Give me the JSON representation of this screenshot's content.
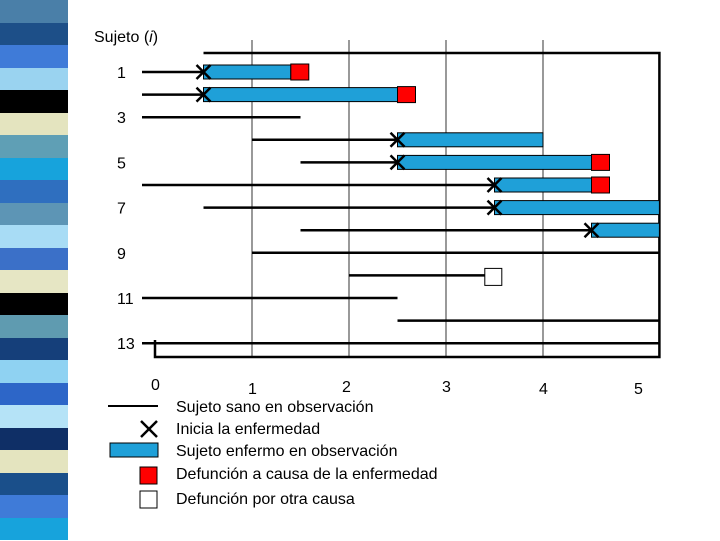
{
  "y_axis_title": "Sujeto (i)",
  "y_axis_title_prefix": "Sujeto (",
  "y_axis_title_var": "i",
  "y_axis_title_suffix": ")",
  "y_tick_labels": [
    "1",
    "3",
    "5",
    "7",
    "9",
    "11",
    "13"
  ],
  "x_tick_labels": [
    "0",
    "1",
    "2",
    "3",
    "4",
    "5"
  ],
  "legend": {
    "healthy": "Sujeto sano en observación",
    "onset": "Inicia la enfermedad",
    "sick": "Sujeto enfermo en observación",
    "death_disease": "Defunción a causa de la enfermedad",
    "death_other": "Defunción por otra causa"
  },
  "colors": {
    "sick_bar": "#1fa0d8",
    "death_disease": "#ff0000",
    "death_other": "#ffffff",
    "line": "#000000"
  },
  "stripe_colors": [
    "#4a7fa8",
    "#1d4f88",
    "#3f7bd8",
    "#9ad3f0",
    "#000000",
    "#e4e4bf",
    "#5f9fb5",
    "#17a3dc",
    "#2f6fbf",
    "#5d95b5",
    "#a8dcf5",
    "#3b70c8",
    "#e6e6c4",
    "#000000",
    "#5f9bb0",
    "#153f7a",
    "#8fd2f2",
    "#2d66c8",
    "#b5e3f7",
    "#0f2f66",
    "#e4e4bf",
    "#1a4f8a",
    "#3f7bd8",
    "#17a3dc"
  ],
  "chart_data": {
    "type": "timeline",
    "x_range": [
      0,
      5
    ],
    "subjects": [
      {
        "id": 1,
        "healthy": [
          0,
          0.5
        ],
        "onset": 0.5,
        "sick": [
          0.5,
          1.4
        ],
        "death": "disease"
      },
      {
        "id": 2,
        "healthy": [
          0,
          0.5
        ],
        "onset": 0.5,
        "sick": [
          0.5,
          2.5
        ],
        "death": "disease"
      },
      {
        "id": 3,
        "healthy": [
          0,
          1.5
        ]
      },
      {
        "id": 4,
        "healthy": [
          1,
          2.5
        ],
        "onset": 2.5,
        "sick": [
          2.5,
          4
        ]
      },
      {
        "id": 5,
        "healthy": [
          1.5,
          2.5
        ],
        "onset": 2.5,
        "sick": [
          2.5,
          4.5
        ],
        "death": "disease"
      },
      {
        "id": 6,
        "healthy": [
          0,
          3.5
        ],
        "onset": 3.5,
        "sick": [
          3.5,
          4.5
        ],
        "death": "disease"
      },
      {
        "id": 7,
        "healthy": [
          0.5,
          3.5
        ],
        "onset": 3.5,
        "sick": [
          3.5,
          5.2
        ]
      },
      {
        "id": 8,
        "healthy": [
          1.5,
          4.5
        ],
        "onset": 4.5,
        "sick": [
          4.5,
          5.2
        ]
      },
      {
        "id": 9,
        "healthy": [
          1,
          5.2
        ]
      },
      {
        "id": 10,
        "healthy": [
          2,
          3.4
        ],
        "death": "other"
      },
      {
        "id": 11,
        "healthy": [
          0,
          2.5
        ]
      },
      {
        "id": 12,
        "healthy": [
          2.5,
          5.2
        ]
      },
      {
        "id": 13,
        "healthy": [
          0,
          5.2
        ]
      }
    ]
  }
}
